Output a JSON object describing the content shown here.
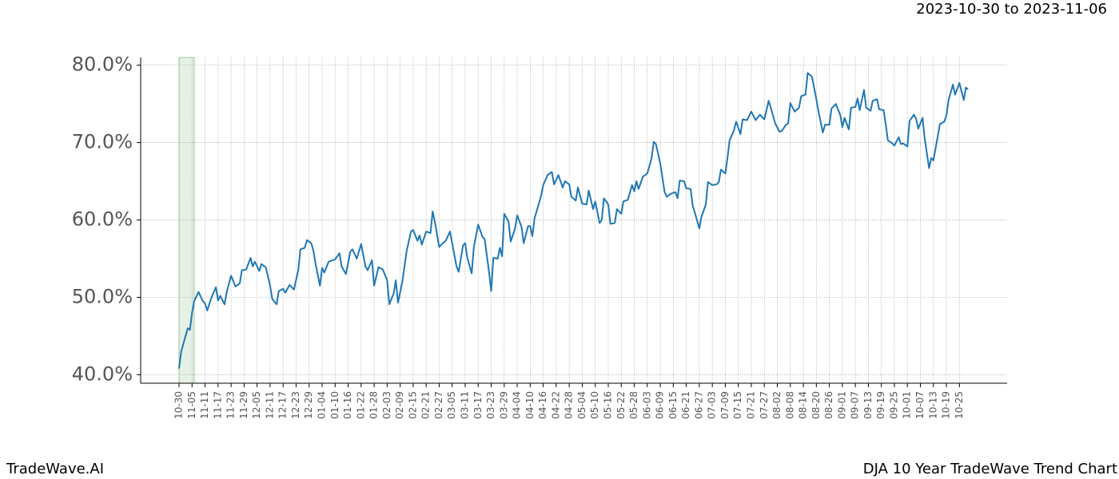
{
  "chart_data": {
    "type": "line",
    "title": "DJA 10 Year TradeWave Trend Chart",
    "subtitle": "2023-10-30 to 2023-11-06",
    "brand": "TradeWave.AI",
    "color": "#1f77b4",
    "highlight": [
      0,
      7
    ],
    "highlight_color": "#d5e8d4",
    "grid": true,
    "xlim": [
      -17.7,
      382
    ],
    "ylim": [
      38.9,
      81.0
    ],
    "yticks": [
      {
        "value": 40,
        "label": "40.0%"
      },
      {
        "value": 50,
        "label": "50.0%"
      },
      {
        "value": 60,
        "label": "60.0%"
      },
      {
        "value": 70,
        "label": "70.0%"
      },
      {
        "value": 80,
        "label": "80.0%"
      }
    ],
    "xticks": [
      {
        "value": 0,
        "label": "10-30"
      },
      {
        "value": 6,
        "label": "11-05"
      },
      {
        "value": 12,
        "label": "11-11"
      },
      {
        "value": 18,
        "label": "11-17"
      },
      {
        "value": 24,
        "label": "11-23"
      },
      {
        "value": 30,
        "label": "11-29"
      },
      {
        "value": 36,
        "label": "12-05"
      },
      {
        "value": 42,
        "label": "12-11"
      },
      {
        "value": 48,
        "label": "12-17"
      },
      {
        "value": 54,
        "label": "12-23"
      },
      {
        "value": 60,
        "label": "12-29"
      },
      {
        "value": 66,
        "label": "01-04"
      },
      {
        "value": 72,
        "label": "01-10"
      },
      {
        "value": 78,
        "label": "01-16"
      },
      {
        "value": 84,
        "label": "01-22"
      },
      {
        "value": 90,
        "label": "01-28"
      },
      {
        "value": 96,
        "label": "02-03"
      },
      {
        "value": 102,
        "label": "02-09"
      },
      {
        "value": 108,
        "label": "02-15"
      },
      {
        "value": 114,
        "label": "02-21"
      },
      {
        "value": 120,
        "label": "02-27"
      },
      {
        "value": 126,
        "label": "03-05"
      },
      {
        "value": 132,
        "label": "03-11"
      },
      {
        "value": 138,
        "label": "03-17"
      },
      {
        "value": 144,
        "label": "03-23"
      },
      {
        "value": 150,
        "label": "03-29"
      },
      {
        "value": 156,
        "label": "04-04"
      },
      {
        "value": 162,
        "label": "04-10"
      },
      {
        "value": 168,
        "label": "04-16"
      },
      {
        "value": 174,
        "label": "04-22"
      },
      {
        "value": 180,
        "label": "04-28"
      },
      {
        "value": 186,
        "label": "05-04"
      },
      {
        "value": 192,
        "label": "05-10"
      },
      {
        "value": 198,
        "label": "05-16"
      },
      {
        "value": 204,
        "label": "05-22"
      },
      {
        "value": 210,
        "label": "05-28"
      },
      {
        "value": 216,
        "label": "06-03"
      },
      {
        "value": 222,
        "label": "06-09"
      },
      {
        "value": 228,
        "label": "06-15"
      },
      {
        "value": 234,
        "label": "06-21"
      },
      {
        "value": 240,
        "label": "06-27"
      },
      {
        "value": 246,
        "label": "07-03"
      },
      {
        "value": 252,
        "label": "07-09"
      },
      {
        "value": 258,
        "label": "07-15"
      },
      {
        "value": 264,
        "label": "07-21"
      },
      {
        "value": 270,
        "label": "07-27"
      },
      {
        "value": 276,
        "label": "08-02"
      },
      {
        "value": 282,
        "label": "08-08"
      },
      {
        "value": 288,
        "label": "08-14"
      },
      {
        "value": 294,
        "label": "08-20"
      },
      {
        "value": 300,
        "label": "08-26"
      },
      {
        "value": 306,
        "label": "09-01"
      },
      {
        "value": 312,
        "label": "09-07"
      },
      {
        "value": 318,
        "label": "09-13"
      },
      {
        "value": 324,
        "label": "09-19"
      },
      {
        "value": 330,
        "label": "09-25"
      },
      {
        "value": 336,
        "label": "10-01"
      },
      {
        "value": 342,
        "label": "10-07"
      },
      {
        "value": 348,
        "label": "10-13"
      },
      {
        "value": 354,
        "label": "10-19"
      },
      {
        "value": 360,
        "label": "10-25"
      }
    ],
    "x": [
      0,
      1,
      4,
      5,
      6,
      7,
      9,
      11,
      12,
      13,
      15,
      17,
      18,
      19,
      21,
      22,
      24,
      26,
      28,
      29,
      31,
      33,
      34,
      35,
      37,
      38,
      40,
      42,
      43,
      45,
      46,
      48,
      49,
      51,
      53,
      55,
      56,
      58,
      59,
      61,
      62,
      63,
      65,
      66,
      67,
      69,
      72,
      74,
      75,
      77,
      79,
      80,
      82,
      84,
      86,
      87,
      89,
      90,
      92,
      94,
      96,
      97,
      99,
      100,
      101,
      103,
      105,
      107,
      108,
      110,
      111,
      112,
      114,
      116,
      117,
      118,
      120,
      121,
      123,
      125,
      126,
      128,
      129,
      131,
      132,
      133,
      135,
      136,
      138,
      140,
      141,
      143,
      144,
      145,
      147,
      148,
      149,
      150,
      152,
      153,
      155,
      156,
      158,
      159,
      161,
      162,
      163,
      164,
      167,
      168,
      170,
      172,
      173,
      175,
      177,
      178,
      180,
      181,
      183,
      184,
      186,
      188,
      189,
      191,
      192,
      194,
      195,
      196,
      198,
      199,
      201,
      202,
      204,
      205,
      207,
      209,
      210,
      211,
      212,
      214,
      216,
      218,
      219,
      220,
      222,
      224,
      225,
      227,
      229,
      230,
      231,
      233,
      234,
      236,
      237,
      238,
      240,
      241,
      243,
      244,
      246,
      248,
      249,
      250,
      252,
      253,
      254,
      256,
      257,
      259,
      260,
      262,
      264,
      266,
      268,
      270,
      272,
      273,
      275,
      277,
      278,
      280,
      281,
      282,
      284,
      286,
      287,
      289,
      290,
      292,
      294,
      295,
      297,
      298,
      300,
      301,
      303,
      305,
      306,
      307,
      309,
      310,
      312,
      313,
      314,
      316,
      317,
      319,
      320,
      322,
      323,
      325,
      326,
      327,
      329,
      330,
      332,
      333,
      334,
      336,
      337,
      339,
      340,
      341,
      343,
      344,
      346,
      347,
      348,
      350,
      351,
      353,
      354,
      355,
      357,
      358,
      360,
      361,
      362,
      363,
      364
    ],
    "values": [
      40.8,
      43,
      46,
      45.8,
      48,
      49.5,
      50.7,
      49.5,
      49.2,
      48.3,
      50,
      51.3,
      49.6,
      50.2,
      49.1,
      50.7,
      52.8,
      51.4,
      51.8,
      53.5,
      53.6,
      55.1,
      54,
      54.6,
      53.4,
      54.3,
      53.9,
      51.5,
      49.8,
      49.1,
      50.8,
      51.1,
      50.6,
      51.6,
      51,
      53.5,
      56.2,
      56.4,
      57.4,
      57,
      56,
      54.3,
      51.5,
      53.8,
      53.2,
      54.6,
      54.9,
      55.7,
      54,
      53,
      55.9,
      56.2,
      55,
      56.9,
      54,
      53.5,
      54.8,
      51.5,
      53.9,
      53.6,
      52.2,
      49.1,
      50.5,
      52.2,
      49.3,
      52,
      56,
      58.5,
      58.7,
      57.3,
      58,
      56.8,
      58.5,
      58.3,
      61.1,
      59.8,
      56.5,
      56.8,
      57.3,
      58.5,
      57,
      54,
      53.3,
      56.7,
      57,
      55.1,
      53.1,
      56.5,
      59.4,
      57.8,
      57.5,
      53.3,
      50.8,
      55.1,
      55,
      56.4,
      55.3,
      60.8,
      59.8,
      57.2,
      58.9,
      60.6,
      59.1,
      57,
      59.2,
      59.2,
      57.9,
      60.2,
      63.1,
      64.5,
      65.8,
      66.2,
      64.6,
      65.8,
      64.2,
      65,
      64.6,
      63,
      62.5,
      64.2,
      62.1,
      62,
      63.8,
      61.4,
      62.4,
      59.6,
      60,
      62.8,
      62,
      59.5,
      59.6,
      61.4,
      60.8,
      62.4,
      62.6,
      64.5,
      63.7,
      65,
      64,
      65.6,
      66,
      68,
      70.1,
      69.8,
      67.3,
      63.6,
      63,
      63.4,
      63.6,
      62.8,
      65.1,
      65,
      64.1,
      64,
      61.8,
      60.9,
      58.9,
      60.4,
      62,
      64.9,
      64.5,
      64.6,
      64.9,
      66.5,
      66,
      68,
      70.3,
      71.6,
      72.7,
      71.1,
      73,
      72.9,
      74,
      72.9,
      73.6,
      73,
      75.4,
      74.5,
      72.5,
      71.4,
      71.5,
      72.3,
      72.5,
      75.1,
      74,
      74.5,
      76,
      76.2,
      79,
      78.5,
      75.6,
      74,
      71.3,
      72.3,
      72.3,
      74.4,
      75,
      73.6,
      72,
      73.2,
      71.7,
      74.5,
      74.6,
      75.7,
      74.2,
      76.8,
      74.5,
      74.1,
      75.4,
      75.6,
      74.3,
      74.2,
      72.4,
      70.3,
      69.9,
      69.6,
      70.7,
      69.8,
      69.9,
      69.5,
      72.8,
      73.6,
      73.1,
      71.8,
      73.2,
      70.5,
      66.7,
      68,
      67.7,
      70.8,
      72.4,
      72.7,
      73.5,
      75.5,
      77.5,
      76.2,
      77.7,
      76.6,
      75.5,
      77.1,
      76.9
    ]
  }
}
